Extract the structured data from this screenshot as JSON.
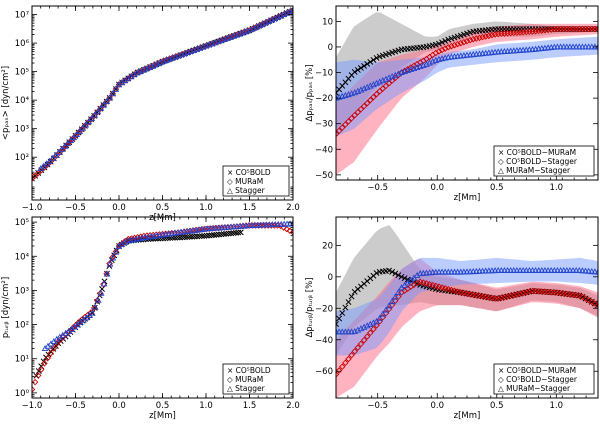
{
  "chart_data": [
    {
      "id": "p1",
      "type": "line",
      "yscale": "log",
      "xlim": [
        -1.0,
        2.0
      ],
      "ylim_exp": [
        0.5,
        7.3
      ],
      "xticks": [
        -1.0,
        -0.5,
        0.0,
        0.5,
        1.0,
        1.5,
        2.0
      ],
      "xtick_labels": [
        "−1.0",
        "−0.5",
        "0.0",
        "0.5",
        "1.0",
        "1.5",
        "2.0"
      ],
      "ytick_exps": [
        2,
        3,
        4,
        5,
        6,
        7
      ],
      "ytick_labels": [
        "10²",
        "10³",
        "10⁴",
        "10⁵",
        "10⁶",
        "10⁷"
      ],
      "xlabel": "z[Mm]",
      "ylabel": "<pₚₐₛ> [dyn/cm²]",
      "legend": [
        "× CO⁵BOLD",
        "◇ MURaM",
        "△ Stagger"
      ],
      "legend_position": "bottom-right",
      "series": [
        {
          "name": "CO5BOLD",
          "color": "#000000",
          "x": [
            -1.0,
            -0.8,
            -0.5,
            -0.3,
            -0.1,
            0.0,
            0.2,
            0.5,
            1.0,
            1.5,
            2.0
          ],
          "y_exp": [
            1.25,
            1.8,
            2.75,
            3.4,
            4.1,
            4.55,
            4.95,
            5.35,
            5.9,
            6.45,
            7.15
          ]
        },
        {
          "name": "MURaM",
          "color": "#cc0000",
          "x": [
            -1.0,
            -0.8,
            -0.5,
            -0.3,
            -0.1,
            0.0,
            0.2,
            0.5,
            1.0,
            1.5,
            2.0
          ],
          "y_exp": [
            1.25,
            1.8,
            2.75,
            3.4,
            4.1,
            4.55,
            4.95,
            5.35,
            5.9,
            6.45,
            7.15
          ]
        },
        {
          "name": "Stagger",
          "color": "#2244cc",
          "x": [
            -0.9,
            -0.8,
            -0.5,
            -0.3,
            -0.1,
            0.0,
            0.2,
            0.5,
            1.0,
            1.5,
            2.0
          ],
          "y_exp": [
            1.6,
            1.85,
            2.75,
            3.4,
            4.1,
            4.55,
            4.95,
            5.35,
            5.9,
            6.45,
            7.15
          ]
        }
      ]
    },
    {
      "id": "p2",
      "type": "area",
      "xlim": [
        -0.85,
        1.35
      ],
      "ylim": [
        -52,
        16
      ],
      "xticks": [
        -0.5,
        0.0,
        0.5,
        1.0
      ],
      "xtick_labels": [
        "−0.5",
        "0.0",
        "0.5",
        "1.0"
      ],
      "yticks": [
        -50,
        -40,
        -30,
        -20,
        -10,
        0,
        10
      ],
      "ytick_labels": [
        "−50",
        "−40",
        "−30",
        "−20",
        "−10",
        "0",
        "10"
      ],
      "xlabel": "z[Mm]",
      "ylabel": "Δpₚₐₛ/pₚₐₛ [%]",
      "legend": [
        "× CO⁵BOLD−MURaM",
        "◇ CO⁵BOLD−Stagger",
        "△ MURaM−Stagger"
      ],
      "legend_position": "bottom-right",
      "series": [
        {
          "name": "CO5BOLD-MURaM",
          "color": "#000000",
          "band_color": "#999999",
          "x": [
            -0.85,
            -0.7,
            -0.5,
            -0.3,
            -0.1,
            0.0,
            0.1,
            0.3,
            0.5,
            0.8,
            1.0,
            1.35
          ],
          "mean": [
            -18,
            -10,
            -4,
            -1,
            0,
            1,
            3,
            6,
            7,
            7,
            7,
            7
          ],
          "upper": [
            -4,
            8,
            14,
            9,
            4,
            4,
            7,
            9,
            10,
            9,
            8,
            7
          ],
          "lower": [
            -33,
            -26,
            -15,
            -8,
            -2,
            -1,
            1,
            4,
            4,
            4,
            5,
            6
          ]
        },
        {
          "name": "CO5BOLD-Stagger",
          "color": "#cc0000",
          "band_color": "#ff6680",
          "x": [
            -0.85,
            -0.7,
            -0.5,
            -0.3,
            -0.1,
            0.0,
            0.1,
            0.3,
            0.5,
            0.8,
            1.0,
            1.35
          ],
          "mean": [
            -34,
            -27,
            -18,
            -10,
            -5,
            -2,
            0,
            3,
            5,
            6,
            7,
            7
          ],
          "upper": [
            -22,
            -15,
            -6,
            -3,
            -1,
            1,
            2,
            6,
            8,
            9,
            9,
            9
          ],
          "lower": [
            -50,
            -45,
            -32,
            -20,
            -12,
            -7,
            -3,
            0,
            2,
            3,
            4,
            5
          ]
        },
        {
          "name": "MURaM-Stagger",
          "color": "#2244cc",
          "band_color": "#7799ff",
          "x": [
            -0.85,
            -0.7,
            -0.5,
            -0.3,
            -0.1,
            0.0,
            0.1,
            0.3,
            0.5,
            0.8,
            1.0,
            1.35
          ],
          "mean": [
            -20,
            -18,
            -14,
            -10,
            -7,
            -5,
            -4,
            -3,
            -2,
            -1,
            0,
            0
          ],
          "upper": [
            -6,
            -5,
            -6,
            -5,
            -4,
            -3,
            -2,
            -1,
            1,
            2,
            3,
            4
          ],
          "lower": [
            -35,
            -32,
            -24,
            -18,
            -13,
            -10,
            -8,
            -7,
            -6,
            -5,
            -4,
            -3
          ]
        }
      ]
    },
    {
      "id": "p3",
      "type": "line",
      "yscale": "log",
      "xlim": [
        -1.0,
        2.0
      ],
      "ylim_exp": [
        -0.15,
        5.15
      ],
      "xticks": [
        -1.0,
        -0.5,
        0.0,
        0.5,
        1.0,
        1.5,
        2.0
      ],
      "xtick_labels": [
        "−1.0",
        "−0.5",
        "0.0",
        "0.5",
        "1.0",
        "1.5",
        "2.0"
      ],
      "ytick_exps": [
        0,
        1,
        2,
        3,
        4,
        5
      ],
      "ytick_labels": [
        "10⁰",
        "10¹",
        "10²",
        "10³",
        "10⁴",
        "10⁵"
      ],
      "xlabel": "z[Mm]",
      "ylabel": "pₜᵤᵣᵦ [dyn/cm²]",
      "legend": [
        "× CO⁵BOLD",
        "◇ MURaM",
        "△ Stagger"
      ],
      "legend_position": "bottom-right",
      "series": [
        {
          "name": "CO5BOLD",
          "color": "#000000",
          "x": [
            -0.95,
            -0.85,
            -0.7,
            -0.55,
            -0.45,
            -0.3,
            -0.2,
            -0.1,
            0.0,
            0.1,
            0.3,
            0.7,
            1.0,
            1.4
          ],
          "y_exp": [
            0.5,
            1.0,
            1.45,
            1.8,
            2.05,
            2.35,
            3.0,
            3.8,
            4.3,
            4.45,
            4.5,
            4.55,
            4.6,
            4.7
          ]
        },
        {
          "name": "MURaM",
          "color": "#cc0000",
          "x": [
            -1.0,
            -0.95,
            -0.85,
            -0.7,
            -0.55,
            -0.45,
            -0.3,
            -0.2,
            -0.1,
            0.0,
            0.1,
            0.3,
            0.7,
            1.0,
            1.5,
            1.85,
            2.0
          ],
          "y_exp": [
            0.1,
            0.4,
            0.9,
            1.5,
            1.85,
            2.1,
            2.4,
            3.0,
            3.85,
            4.3,
            4.5,
            4.6,
            4.7,
            4.8,
            4.9,
            4.9,
            4.7
          ]
        },
        {
          "name": "Stagger",
          "color": "#2244cc",
          "x": [
            -0.85,
            -0.7,
            -0.55,
            -0.45,
            -0.3,
            -0.2,
            -0.1,
            0.0,
            0.1,
            0.3,
            0.7,
            1.0,
            1.5,
            2.0
          ],
          "y_exp": [
            1.3,
            1.6,
            1.85,
            2.05,
            2.35,
            2.95,
            3.8,
            4.3,
            4.45,
            4.55,
            4.7,
            4.8,
            4.9,
            4.95
          ]
        }
      ]
    },
    {
      "id": "p4",
      "type": "area",
      "xlim": [
        -0.85,
        1.35
      ],
      "ylim": [
        -77,
        38
      ],
      "xticks": [
        -0.5,
        0.0,
        0.5,
        1.0
      ],
      "xtick_labels": [
        "−0.5",
        "0.0",
        "0.5",
        "1.0"
      ],
      "yticks": [
        -60,
        -40,
        -20,
        0,
        20
      ],
      "ytick_labels": [
        "−60",
        "−40",
        "−20",
        "0",
        "20"
      ],
      "xlabel": "z[Mm]",
      "ylabel": "Δpₜᵤᵣᵦ/pₜᵤᵣᵦ [%]",
      "legend": [
        "× CO⁵BOLD−MURaM",
        "◇ CO⁵BOLD−Stagger",
        "△ MURaM−Stagger"
      ],
      "legend_position": "bottom-right",
      "series": [
        {
          "name": "CO5BOLD-MURaM",
          "color": "#000000",
          "band_color": "#999999",
          "x": [
            -0.85,
            -0.7,
            -0.5,
            -0.4,
            -0.3,
            -0.15,
            0.0,
            0.2,
            0.5,
            0.8,
            1.0,
            1.2,
            1.35
          ],
          "mean": [
            -30,
            -10,
            3,
            4,
            0,
            -5,
            -8,
            -10,
            -14,
            -9,
            -10,
            -12,
            -18
          ],
          "upper": [
            -10,
            12,
            30,
            33,
            22,
            5,
            0,
            -2,
            -8,
            -4,
            -5,
            -7,
            -12
          ],
          "lower": [
            -50,
            -32,
            -20,
            -18,
            -18,
            -16,
            -18,
            -18,
            -22,
            -15,
            -16,
            -20,
            -25
          ]
        },
        {
          "name": "CO5BOLD-Stagger",
          "color": "#cc0000",
          "band_color": "#ff6680",
          "x": [
            -0.85,
            -0.7,
            -0.5,
            -0.4,
            -0.3,
            -0.15,
            0.0,
            0.2,
            0.5,
            0.8,
            1.0,
            1.2,
            1.35
          ],
          "mean": [
            -62,
            -48,
            -30,
            -20,
            -10,
            -3,
            -6,
            -10,
            -14,
            -9,
            -10,
            -12,
            -18
          ],
          "upper": [
            -40,
            -28,
            -12,
            -3,
            5,
            12,
            3,
            -2,
            -7,
            -3,
            -4,
            -6,
            -10
          ],
          "lower": [
            -77,
            -70,
            -50,
            -42,
            -32,
            -22,
            -18,
            -18,
            -22,
            -16,
            -17,
            -20,
            -26
          ]
        },
        {
          "name": "MURaM-Stagger",
          "color": "#2244cc",
          "band_color": "#7799ff",
          "x": [
            -0.85,
            -0.7,
            -0.5,
            -0.4,
            -0.3,
            -0.15,
            0.0,
            0.2,
            0.5,
            0.8,
            1.0,
            1.2,
            1.35
          ],
          "mean": [
            -35,
            -35,
            -28,
            -18,
            -7,
            2,
            3,
            3,
            4,
            4,
            4,
            4,
            3
          ],
          "upper": [
            -22,
            -20,
            -14,
            -5,
            5,
            12,
            12,
            10,
            12,
            10,
            11,
            12,
            10
          ],
          "lower": [
            -50,
            -50,
            -45,
            -35,
            -22,
            -10,
            -7,
            -5,
            -4,
            -3,
            -3,
            -4,
            -5
          ]
        }
      ]
    }
  ]
}
